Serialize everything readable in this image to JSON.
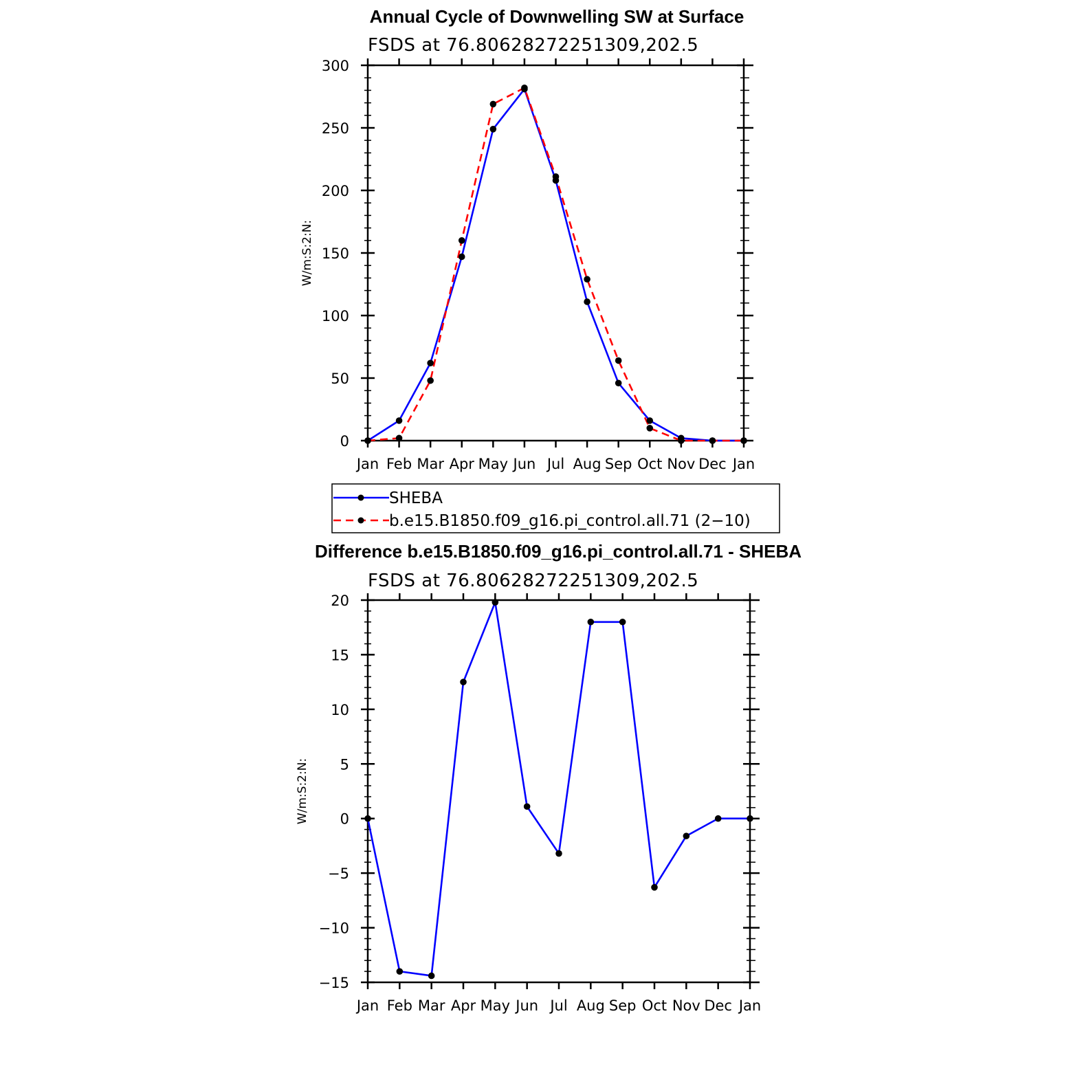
{
  "chart_data": [
    {
      "type": "line",
      "title": "Annual Cycle of Downwelling SW at Surface",
      "subtitle": "FSDS  at  76.80628272251309,202.5",
      "ylabel": "W/m:S:2:N:",
      "categories": [
        "Jan",
        "Feb",
        "Mar",
        "Apr",
        "May",
        "Jun",
        "Jul",
        "Aug",
        "Sep",
        "Oct",
        "Nov",
        "Dec",
        "Jan"
      ],
      "ylim": [
        0,
        300
      ],
      "yticks": [
        0,
        50,
        100,
        150,
        200,
        250,
        300
      ],
      "series": [
        {
          "name": "SHEBA",
          "color": "#0000ff",
          "dash": "solid",
          "values": [
            0,
            16,
            62,
            147,
            249,
            281,
            208,
            111,
            46,
            16,
            2,
            0,
            0
          ]
        },
        {
          "name": "b.e15.B1850.f09_g16.pi_control.all.71 (2−10)",
          "color": "#ff0000",
          "dash": "dashed",
          "values": [
            0,
            2,
            48,
            160,
            269,
            282,
            211,
            129,
            64,
            10,
            0,
            0,
            0
          ]
        }
      ],
      "legend": "below"
    },
    {
      "type": "line",
      "title": "Difference b.e15.B1850.f09_g16.pi_control.all.71 - SHEBA",
      "subtitle": "FSDS  at  76.80628272251309,202.5",
      "ylabel": "W/m:S:2:N:",
      "categories": [
        "Jan",
        "Feb",
        "Mar",
        "Apr",
        "May",
        "Jun",
        "Jul",
        "Aug",
        "Sep",
        "Oct",
        "Nov",
        "Dec",
        "Jan"
      ],
      "ylim": [
        -15,
        20
      ],
      "yticks": [
        -15,
        -10,
        -5,
        0,
        5,
        10,
        15,
        20
      ],
      "ytick_labels": [
        "−15",
        "−10",
        "−5",
        "0",
        "5",
        "10",
        "15",
        "20"
      ],
      "series": [
        {
          "color": "#0000ff",
          "dash": "solid",
          "values": [
            0,
            -14,
            -14.4,
            12.5,
            19.8,
            1.1,
            -3.2,
            18,
            18,
            -6.3,
            -1.6,
            0,
            0
          ]
        }
      ]
    }
  ]
}
